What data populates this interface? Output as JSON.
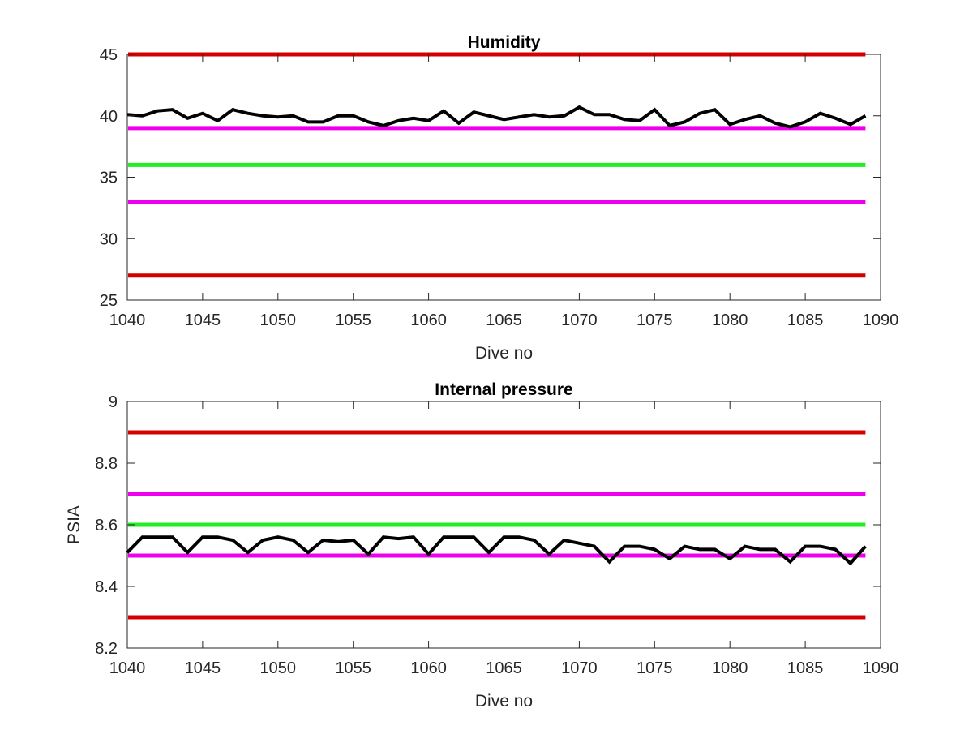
{
  "chart_data": [
    {
      "type": "line",
      "title": "Humidity",
      "xlabel": "Dive no",
      "ylabel": "",
      "xlim": [
        1040,
        1090
      ],
      "ylim": [
        25,
        45
      ],
      "xticks": [
        1040,
        1045,
        1050,
        1055,
        1060,
        1065,
        1070,
        1075,
        1080,
        1085,
        1090
      ],
      "yticks": [
        25,
        30,
        35,
        40,
        45
      ],
      "grid": false,
      "reference_lines": [
        {
          "y": 45,
          "color": "#d40000"
        },
        {
          "y": 39,
          "color": "#ee00ee"
        },
        {
          "y": 36,
          "color": "#22ee22"
        },
        {
          "y": 33,
          "color": "#ee00ee"
        },
        {
          "y": 27,
          "color": "#d40000"
        }
      ],
      "series": [
        {
          "color": "#000000",
          "x": [
            1040,
            1041,
            1042,
            1043,
            1044,
            1045,
            1046,
            1047,
            1048,
            1049,
            1050,
            1051,
            1052,
            1053,
            1054,
            1055,
            1056,
            1057,
            1058,
            1059,
            1060,
            1061,
            1062,
            1063,
            1064,
            1065,
            1066,
            1067,
            1068,
            1069,
            1070,
            1071,
            1072,
            1073,
            1074,
            1075,
            1076,
            1077,
            1078,
            1079,
            1080,
            1081,
            1082,
            1083,
            1084,
            1085,
            1086,
            1087,
            1088,
            1089
          ],
          "y": [
            40.1,
            40.0,
            40.4,
            40.5,
            39.8,
            40.2,
            39.6,
            40.5,
            40.2,
            40.0,
            39.9,
            40.0,
            39.5,
            39.5,
            40.0,
            40.0,
            39.5,
            39.2,
            39.6,
            39.8,
            39.6,
            40.4,
            39.4,
            40.3,
            40.0,
            39.7,
            39.9,
            40.1,
            39.9,
            40.0,
            40.7,
            40.1,
            40.1,
            39.7,
            39.6,
            40.5,
            39.2,
            39.5,
            40.2,
            40.5,
            39.3,
            39.7,
            40.0,
            39.4,
            39.1,
            39.5,
            40.2,
            39.8,
            39.3,
            40.0
          ]
        }
      ]
    },
    {
      "type": "line",
      "title": "Internal pressure",
      "xlabel": "Dive no",
      "ylabel": "PSIA",
      "xlim": [
        1040,
        1090
      ],
      "ylim": [
        8.2,
        9
      ],
      "xticks": [
        1040,
        1045,
        1050,
        1055,
        1060,
        1065,
        1070,
        1075,
        1080,
        1085,
        1090
      ],
      "yticks": [
        8.2,
        8.4,
        8.6,
        8.8,
        9
      ],
      "ytick_labels": [
        "8.2",
        "8.4",
        "8.6",
        "8.8",
        "9"
      ],
      "grid": false,
      "reference_lines": [
        {
          "y": 8.9,
          "color": "#d40000"
        },
        {
          "y": 8.7,
          "color": "#ee00ee"
        },
        {
          "y": 8.6,
          "color": "#22ee22"
        },
        {
          "y": 8.5,
          "color": "#ee00ee"
        },
        {
          "y": 8.3,
          "color": "#d40000"
        }
      ],
      "series": [
        {
          "color": "#000000",
          "x": [
            1040,
            1041,
            1042,
            1043,
            1044,
            1045,
            1046,
            1047,
            1048,
            1049,
            1050,
            1051,
            1052,
            1053,
            1054,
            1055,
            1056,
            1057,
            1058,
            1059,
            1060,
            1061,
            1062,
            1063,
            1064,
            1065,
            1066,
            1067,
            1068,
            1069,
            1070,
            1071,
            1072,
            1073,
            1074,
            1075,
            1076,
            1077,
            1078,
            1079,
            1080,
            1081,
            1082,
            1083,
            1084,
            1085,
            1086,
            1087,
            1088,
            1089
          ],
          "y": [
            8.51,
            8.56,
            8.56,
            8.56,
            8.51,
            8.56,
            8.56,
            8.55,
            8.51,
            8.55,
            8.56,
            8.55,
            8.51,
            8.55,
            8.545,
            8.55,
            8.505,
            8.56,
            8.555,
            8.56,
            8.505,
            8.56,
            8.56,
            8.56,
            8.51,
            8.56,
            8.56,
            8.55,
            8.505,
            8.55,
            8.54,
            8.53,
            8.48,
            8.53,
            8.53,
            8.52,
            8.49,
            8.53,
            8.52,
            8.52,
            8.49,
            8.53,
            8.52,
            8.52,
            8.48,
            8.53,
            8.53,
            8.52,
            8.475,
            8.53
          ]
        }
      ]
    }
  ]
}
